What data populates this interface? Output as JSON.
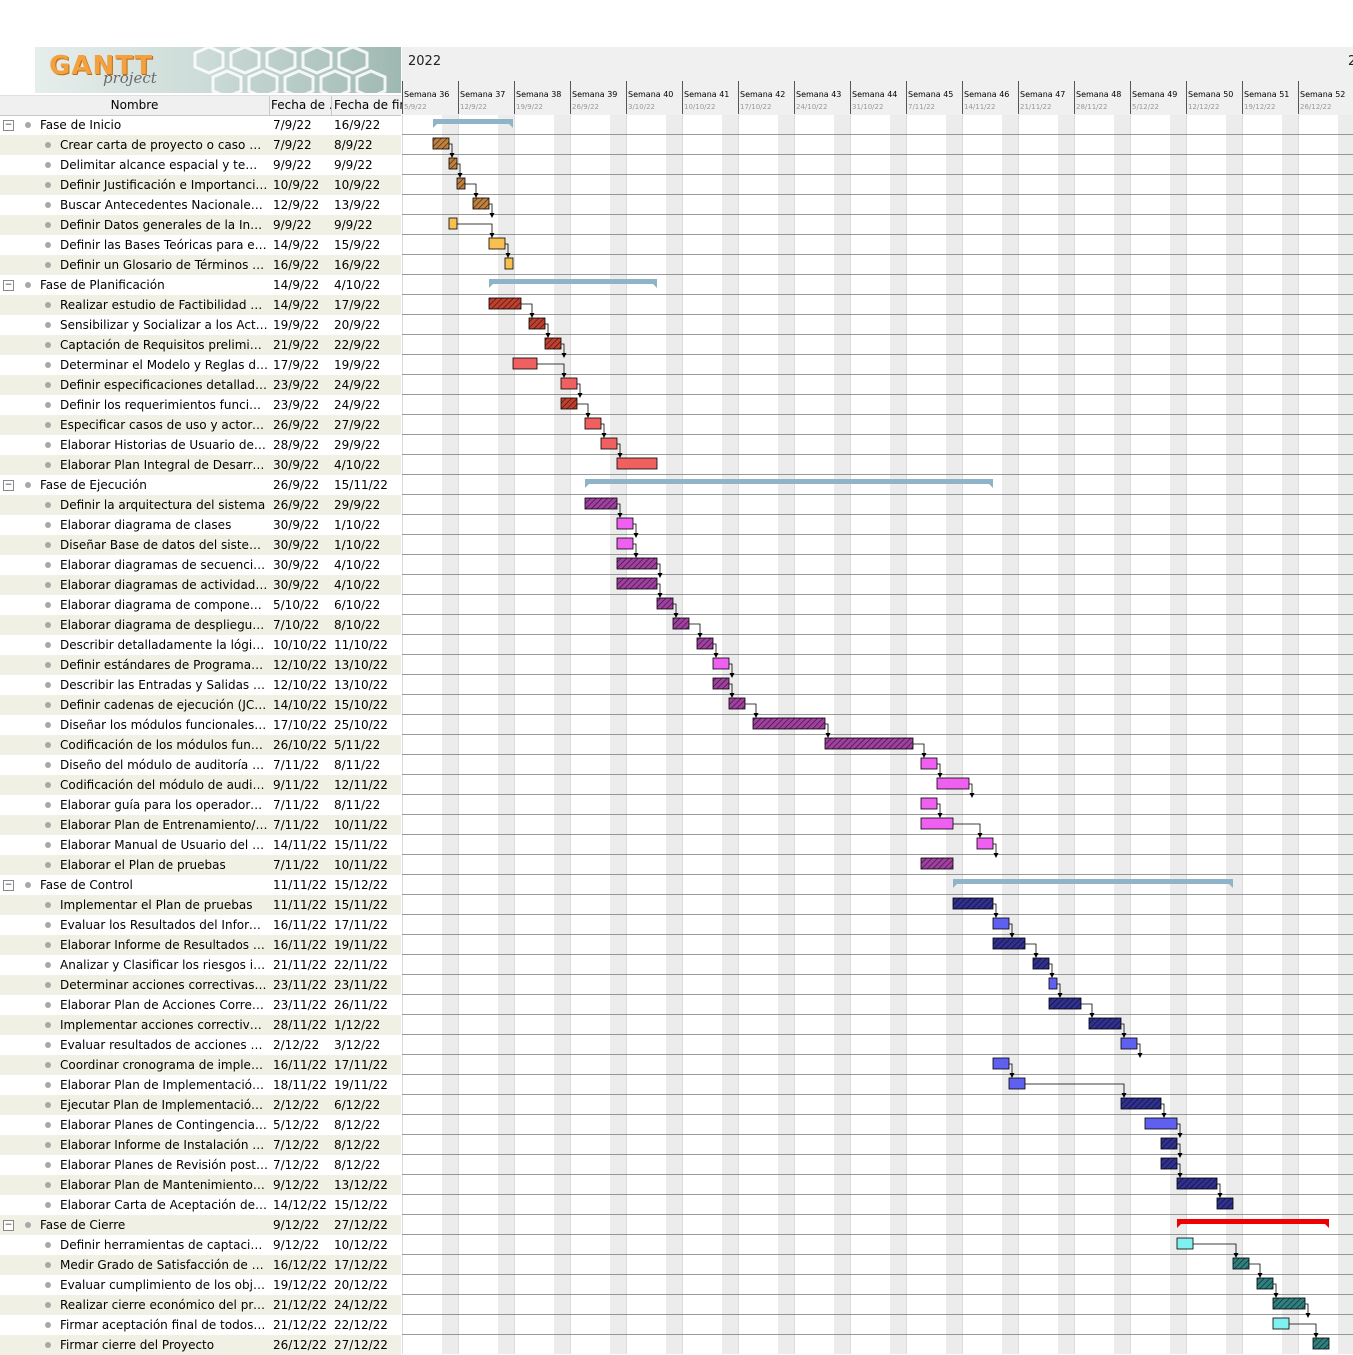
{
  "app": {
    "logo_text": "GANTT",
    "logo_sub": "project"
  },
  "table": {
    "col_name": "Nombre",
    "col_start": "Fecha de ...",
    "col_end": "Fecha de fin"
  },
  "timeline": {
    "year": "2022",
    "weeks": [
      {
        "label": "Semana 36",
        "date": "5/9/22"
      },
      {
        "label": "Semana 37",
        "date": "12/9/22"
      },
      {
        "label": "Semana 38",
        "date": "19/9/22"
      },
      {
        "label": "Semana 39",
        "date": "26/9/22"
      },
      {
        "label": "Semana 40",
        "date": "3/10/22"
      },
      {
        "label": "Semana 41",
        "date": "10/10/22"
      },
      {
        "label": "Semana 42",
        "date": "17/10/22"
      },
      {
        "label": "Semana 43",
        "date": "24/10/22"
      },
      {
        "label": "Semana 44",
        "date": "31/10/22"
      },
      {
        "label": "Semana 45",
        "date": "7/11/22"
      },
      {
        "label": "Semana 46",
        "date": "14/11/22"
      },
      {
        "label": "Semana 47",
        "date": "21/11/22"
      },
      {
        "label": "Semana 48",
        "date": "28/11/22"
      },
      {
        "label": "Semana 49",
        "date": "5/12/22"
      },
      {
        "label": "Semana 50",
        "date": "12/12/22"
      },
      {
        "label": "Semana 51",
        "date": "19/12/22"
      },
      {
        "label": "Semana 52",
        "date": "26/12/22"
      }
    ]
  },
  "colors": {
    "phase_bar": "#8fb3c8",
    "fase_cierre_bar": "#ee0000"
  },
  "tasks": [
    {
      "name": "Fase de Inicio",
      "start": "7/9/22",
      "end": "16/9/22",
      "phase": true
    },
    {
      "name": "Crear carta de proyecto o caso de negocio",
      "start": "7/9/22",
      "end": "8/9/22",
      "color": "#c08040",
      "hatch": true
    },
    {
      "name": "Delimitar alcance espacial y temporal del proyecto",
      "start": "9/9/22",
      "end": "9/9/22",
      "color": "#c08040",
      "hatch": true
    },
    {
      "name": "Definir Justificación e Importancia del proyecto",
      "start": "10/9/22",
      "end": "10/9/22",
      "color": "#c08040",
      "hatch": true
    },
    {
      "name": "Buscar Antecedentes Nacionales e Internacionales",
      "start": "12/9/22",
      "end": "13/9/22",
      "color": "#c08040",
      "hatch": true
    },
    {
      "name": "Definir Datos generales de la Institución",
      "start": "9/9/22",
      "end": "9/9/22",
      "color": "#f8c050",
      "hatch": false
    },
    {
      "name": "Definir las Bases Teóricas para el Proyecto",
      "start": "14/9/22",
      "end": "15/9/22",
      "color": "#f8c050",
      "hatch": false
    },
    {
      "name": "Definir un Glosario de Términos específicos",
      "start": "16/9/22",
      "end": "16/9/22",
      "color": "#f8c050",
      "hatch": false
    },
    {
      "name": "Fase de Planificación",
      "start": "14/9/22",
      "end": "4/10/22",
      "phase": true
    },
    {
      "name": "Realizar estudio de Factibilidad del Negocio",
      "start": "14/9/22",
      "end": "17/9/22",
      "color": "#c04030",
      "hatch": true
    },
    {
      "name": "Sensibilizar y Socializar a los Actores y Usuarios",
      "start": "19/9/22",
      "end": "20/9/22",
      "color": "#c04030",
      "hatch": true
    },
    {
      "name": "Captación de Requisitos preliminares",
      "start": "21/9/22",
      "end": "22/9/22",
      "color": "#c04030",
      "hatch": true
    },
    {
      "name": "Determinar el Modelo y Reglas de negocio",
      "start": "17/9/22",
      "end": "19/9/22",
      "color": "#f06060",
      "hatch": false
    },
    {
      "name": "Definir especificaciones detalladas del sistema",
      "start": "23/9/22",
      "end": "24/9/22",
      "color": "#f06060",
      "hatch": false
    },
    {
      "name": "Definir los requerimientos funcionales del sistema",
      "start": "23/9/22",
      "end": "24/9/22",
      "color": "#c04030",
      "hatch": true
    },
    {
      "name": "Especificar casos de uso y actores del sistema",
      "start": "26/9/22",
      "end": "27/9/22",
      "color": "#f06060",
      "hatch": false
    },
    {
      "name": "Elaborar Historias de Usuario del sistema",
      "start": "28/9/22",
      "end": "29/9/22",
      "color": "#f06060",
      "hatch": false
    },
    {
      "name": "Elaborar Plan Integral de Desarrollo del Proyecto",
      "start": "30/9/22",
      "end": "4/10/22",
      "color": "#f06060",
      "hatch": false
    },
    {
      "name": "Fase de Ejecución",
      "start": "26/9/22",
      "end": "15/11/22",
      "phase": true
    },
    {
      "name": "Definir la arquitectura del sistema",
      "start": "26/9/22",
      "end": "29/9/22",
      "color": "#a040a0",
      "hatch": true
    },
    {
      "name": "Elaborar diagrama de clases",
      "start": "30/9/22",
      "end": "1/10/22",
      "color": "#f060f0",
      "hatch": false
    },
    {
      "name": "Diseñar Base de datos del sistema.",
      "start": "30/9/22",
      "end": "1/10/22",
      "color": "#f060f0",
      "hatch": false
    },
    {
      "name": "Elaborar diagramas de secuencia de robustez",
      "start": "30/9/22",
      "end": "4/10/22",
      "color": "#a040a0",
      "hatch": true
    },
    {
      "name": "Elaborar diagramas de actividades del sistema",
      "start": "30/9/22",
      "end": "4/10/22",
      "color": "#a040a0",
      "hatch": true
    },
    {
      "name": "Elaborar diagrama de componentes del sistema",
      "start": "5/10/22",
      "end": "6/10/22",
      "color": "#a040a0",
      "hatch": true
    },
    {
      "name": "Elaborar diagrama de despliegue del sistema",
      "start": "7/10/22",
      "end": "8/10/22",
      "color": "#a040a0",
      "hatch": true
    },
    {
      "name": "Describir detalladamente la lógica del sistema",
      "start": "10/10/22",
      "end": "11/10/22",
      "color": "#a040a0",
      "hatch": true
    },
    {
      "name": "Definir estándares de Programación y Base de Datos",
      "start": "12/10/22",
      "end": "13/10/22",
      "color": "#f060f0",
      "hatch": false
    },
    {
      "name": "Describir las Entradas y Salidas (ficheros)",
      "start": "12/10/22",
      "end": "13/10/22",
      "color": "#a040a0",
      "hatch": true
    },
    {
      "name": "Definir cadenas de ejecución (JCL, scripts)",
      "start": "14/10/22",
      "end": "15/10/22",
      "color": "#a040a0",
      "hatch": true
    },
    {
      "name": "Diseñar los módulos funcionales del sistema",
      "start": "17/10/22",
      "end": "25/10/22",
      "color": "#a040a0",
      "hatch": true
    },
    {
      "name": "Codificación de los módulos funcionales",
      "start": "26/10/22",
      "end": "5/11/22",
      "color": "#a040a0",
      "hatch": true
    },
    {
      "name": "Diseño del módulo de auditoría para el sistema",
      "start": "7/11/22",
      "end": "8/11/22",
      "color": "#f060f0",
      "hatch": false
    },
    {
      "name": "Codificación del módulo de auditoría del sistema",
      "start": "9/11/22",
      "end": "12/11/22",
      "color": "#f060f0",
      "hatch": false
    },
    {
      "name": "Elaborar guía para los operadores del sistema",
      "start": "7/11/22",
      "end": "8/11/22",
      "color": "#f060f0",
      "hatch": false
    },
    {
      "name": "Elaborar Plan de Entrenamiento/Capacitación",
      "start": "7/11/22",
      "end": "10/11/22",
      "color": "#f060f0",
      "hatch": false
    },
    {
      "name": "Elaborar Manual de Usuario del Sistema",
      "start": "14/11/22",
      "end": "15/11/22",
      "color": "#f060f0",
      "hatch": false
    },
    {
      "name": "Elaborar el Plan de pruebas",
      "start": "7/11/22",
      "end": "10/11/22",
      "color": "#a040a0",
      "hatch": true
    },
    {
      "name": "Fase de Control",
      "start": "11/11/22",
      "end": "15/12/22",
      "phase": true
    },
    {
      "name": "Implementar el Plan de pruebas",
      "start": "11/11/22",
      "end": "15/11/22",
      "color": "#303090",
      "hatch": true
    },
    {
      "name": "Evaluar los Resultados del Informe de pruebas",
      "start": "16/11/22",
      "end": "17/11/22",
      "color": "#6060f0",
      "hatch": false
    },
    {
      "name": "Elaborar Informe de Resultados del Plan de pruebas",
      "start": "16/11/22",
      "end": "19/11/22",
      "color": "#303090",
      "hatch": true
    },
    {
      "name": "Analizar y Clasificar los riesgos identificados",
      "start": "21/11/22",
      "end": "22/11/22",
      "color": "#303090",
      "hatch": true
    },
    {
      "name": "Determinar acciones correctivas para los riesgos",
      "start": "23/11/22",
      "end": "23/11/22",
      "color": "#6060f0",
      "hatch": false
    },
    {
      "name": "Elaborar Plan de Acciones Correctivas",
      "start": "23/11/22",
      "end": "26/11/22",
      "color": "#303090",
      "hatch": true
    },
    {
      "name": "Implementar acciones correctivas al sistema",
      "start": "28/11/22",
      "end": "1/12/22",
      "color": "#303090",
      "hatch": true
    },
    {
      "name": "Evaluar resultados de acciones correctivas",
      "start": "2/12/22",
      "end": "3/12/22",
      "color": "#6060f0",
      "hatch": false
    },
    {
      "name": "Coordinar cronograma de implementación",
      "start": "16/11/22",
      "end": "17/11/22",
      "color": "#6060f0",
      "hatch": false
    },
    {
      "name": "Elaborar Plan de Implementación del sistema",
      "start": "18/11/22",
      "end": "19/11/22",
      "color": "#6060f0",
      "hatch": false
    },
    {
      "name": "Ejecutar Plan de Implementación/Instalación",
      "start": "2/12/22",
      "end": "6/12/22",
      "color": "#303090",
      "hatch": true
    },
    {
      "name": "Elaborar Planes de Contingencias para el sistema",
      "start": "5/12/22",
      "end": "8/12/22",
      "color": "#6060f0",
      "hatch": false
    },
    {
      "name": "Elaborar Informe de Instalación del Sistema",
      "start": "7/12/22",
      "end": "8/12/22",
      "color": "#303090",
      "hatch": true
    },
    {
      "name": "Elaborar Planes de Revisión post-instalación",
      "start": "7/12/22",
      "end": "8/12/22",
      "color": "#303090",
      "hatch": true
    },
    {
      "name": "Elaborar Plan de Mantenimiento para el sistema",
      "start": "9/12/22",
      "end": "13/12/22",
      "color": "#303090",
      "hatch": true
    },
    {
      "name": "Elaborar Carta de Aceptación del Sistema",
      "start": "14/12/22",
      "end": "15/12/22",
      "color": "#303090",
      "hatch": true
    },
    {
      "name": "Fase de Cierre",
      "start": "9/12/22",
      "end": "27/12/22",
      "phase": true,
      "red": true
    },
    {
      "name": "Definir herramientas de captación de información",
      "start": "9/12/22",
      "end": "10/12/22",
      "color": "#80f0f0",
      "hatch": false
    },
    {
      "name": "Medir Grado de Satisfacción de Usuarios",
      "start": "16/12/22",
      "end": "17/12/22",
      "color": "#308080",
      "hatch": true
    },
    {
      "name": "Evaluar cumplimiento de los objetivos",
      "start": "19/12/22",
      "end": "20/12/22",
      "color": "#308080",
      "hatch": true
    },
    {
      "name": "Realizar cierre económico del proyecto",
      "start": "21/12/22",
      "end": "24/12/22",
      "color": "#308080",
      "hatch": true
    },
    {
      "name": "Firmar aceptación final de todos los entregables",
      "start": "21/12/22",
      "end": "22/12/22",
      "color": "#80f0f0",
      "hatch": false
    },
    {
      "name": "Firmar cierre del Proyecto",
      "start": "26/12/22",
      "end": "27/12/22",
      "color": "#308080",
      "hatch": true
    }
  ]
}
